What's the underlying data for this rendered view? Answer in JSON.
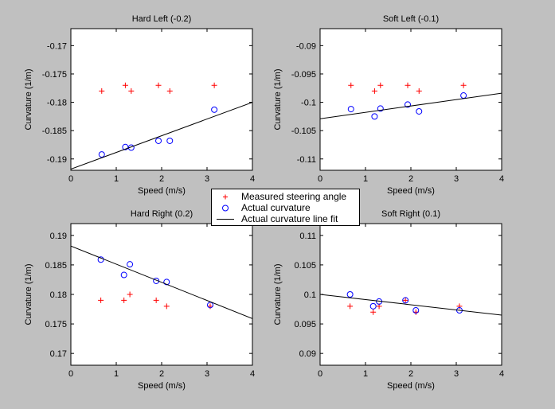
{
  "legend": {
    "measured_label": "Measured steering angle",
    "actual_label": "Actual curvature",
    "fit_label": "Actual curvature line fit"
  },
  "colors": {
    "background": "#c0c0c0",
    "axes_bg": "#ffffff",
    "measured": "#ff0000",
    "actual": "#0000ff",
    "fit": "#000000"
  },
  "chart_data": [
    {
      "type": "scatter",
      "title": "Hard Left (-0.2)",
      "xlabel": "Speed (m/s)",
      "ylabel": "Curvature (1/m)",
      "xlim": [
        0,
        4
      ],
      "ylim": [
        -0.192,
        -0.167
      ],
      "xticks": [
        0,
        1,
        2,
        3,
        4
      ],
      "yticks": [
        -0.19,
        -0.185,
        -0.18,
        -0.175,
        -0.17
      ],
      "ytick_labels": [
        "-0.19",
        "-0.185",
        "-0.18",
        "-0.175",
        "-0.17"
      ],
      "series": [
        {
          "name": "Measured steering angle",
          "marker": "+",
          "x": [
            0.68,
            1.2,
            1.33,
            1.93,
            2.18,
            3.16
          ],
          "y": [
            -0.178,
            -0.177,
            -0.178,
            -0.177,
            -0.178,
            -0.177
          ]
        },
        {
          "name": "Actual curvature",
          "marker": "o",
          "x": [
            0.68,
            1.2,
            1.33,
            1.93,
            2.18,
            3.16
          ],
          "y": [
            -0.1892,
            -0.1879,
            -0.188,
            -0.1868,
            -0.1868,
            -0.1813
          ]
        },
        {
          "name": "Actual curvature line fit",
          "marker": "line",
          "x": [
            0,
            4
          ],
          "y": [
            -0.1918,
            -0.18
          ]
        }
      ]
    },
    {
      "type": "scatter",
      "title": "Soft Left (-0.1)",
      "xlabel": "Speed (m/s)",
      "ylabel": "Curvature (1/m)",
      "xlim": [
        0,
        4
      ],
      "ylim": [
        -0.112,
        -0.087
      ],
      "xticks": [
        0,
        1,
        2,
        3,
        4
      ],
      "yticks": [
        -0.11,
        -0.105,
        -0.1,
        -0.095,
        -0.09
      ],
      "ytick_labels": [
        "-0.11",
        "-0.105",
        "-0.1",
        "-0.095",
        "-0.09"
      ],
      "series": [
        {
          "name": "Measured steering angle",
          "marker": "+",
          "x": [
            0.68,
            1.2,
            1.33,
            1.93,
            2.18,
            3.16
          ],
          "y": [
            -0.097,
            -0.098,
            -0.097,
            -0.097,
            -0.098,
            -0.097
          ]
        },
        {
          "name": "Actual curvature",
          "marker": "o",
          "x": [
            0.68,
            1.2,
            1.33,
            1.93,
            2.18,
            3.16
          ],
          "y": [
            -0.1012,
            -0.1025,
            -0.1011,
            -0.1004,
            -0.1016,
            -0.0988
          ]
        },
        {
          "name": "Actual curvature line fit",
          "marker": "line",
          "x": [
            0,
            4
          ],
          "y": [
            -0.1029,
            -0.0984
          ]
        }
      ]
    },
    {
      "type": "scatter",
      "title": "Hard Right (0.2)",
      "xlabel": "Speed (m/s)",
      "ylabel": "Curvature (1/m)",
      "xlim": [
        0,
        4
      ],
      "ylim": [
        0.168,
        0.192
      ],
      "xticks": [
        0,
        1,
        2,
        3,
        4
      ],
      "yticks": [
        0.17,
        0.175,
        0.18,
        0.185,
        0.19
      ],
      "ytick_labels": [
        "0.17",
        "0.175",
        "0.18",
        "0.185",
        "0.19"
      ],
      "series": [
        {
          "name": "Measured steering angle",
          "marker": "+",
          "x": [
            0.66,
            1.17,
            1.3,
            1.88,
            2.11,
            3.07
          ],
          "y": [
            0.179,
            0.179,
            0.18,
            0.179,
            0.178,
            0.178
          ]
        },
        {
          "name": "Actual curvature",
          "marker": "o",
          "x": [
            0.66,
            1.17,
            1.3,
            1.88,
            2.11,
            3.07
          ],
          "y": [
            0.1859,
            0.1833,
            0.1851,
            0.1823,
            0.1821,
            0.1782
          ]
        },
        {
          "name": "Actual curvature line fit",
          "marker": "line",
          "x": [
            0,
            4
          ],
          "y": [
            0.1882,
            0.1759
          ]
        }
      ]
    },
    {
      "type": "scatter",
      "title": "Soft Right (0.1)",
      "xlabel": "Speed (m/s)",
      "ylabel": "Curvature (1/m)",
      "xlim": [
        0,
        4
      ],
      "ylim": [
        0.088,
        0.112
      ],
      "xticks": [
        0,
        1,
        2,
        3,
        4
      ],
      "yticks": [
        0.09,
        0.095,
        0.1,
        0.105,
        0.11
      ],
      "ytick_labels": [
        "0.09",
        "0.095",
        "0.1",
        "0.105",
        "0.11"
      ],
      "series": [
        {
          "name": "Measured steering angle",
          "marker": "+",
          "x": [
            0.66,
            1.17,
            1.3,
            1.88,
            2.11,
            3.07
          ],
          "y": [
            0.098,
            0.097,
            0.098,
            0.099,
            0.097,
            0.098
          ]
        },
        {
          "name": "Actual curvature",
          "marker": "o",
          "x": [
            0.66,
            1.17,
            1.3,
            1.88,
            2.11,
            3.07
          ],
          "y": [
            0.1,
            0.098,
            0.0988,
            0.099,
            0.0973,
            0.0973
          ]
        },
        {
          "name": "Actual curvature line fit",
          "marker": "line",
          "x": [
            0,
            4
          ],
          "y": [
            0.1,
            0.0965
          ]
        }
      ]
    }
  ]
}
